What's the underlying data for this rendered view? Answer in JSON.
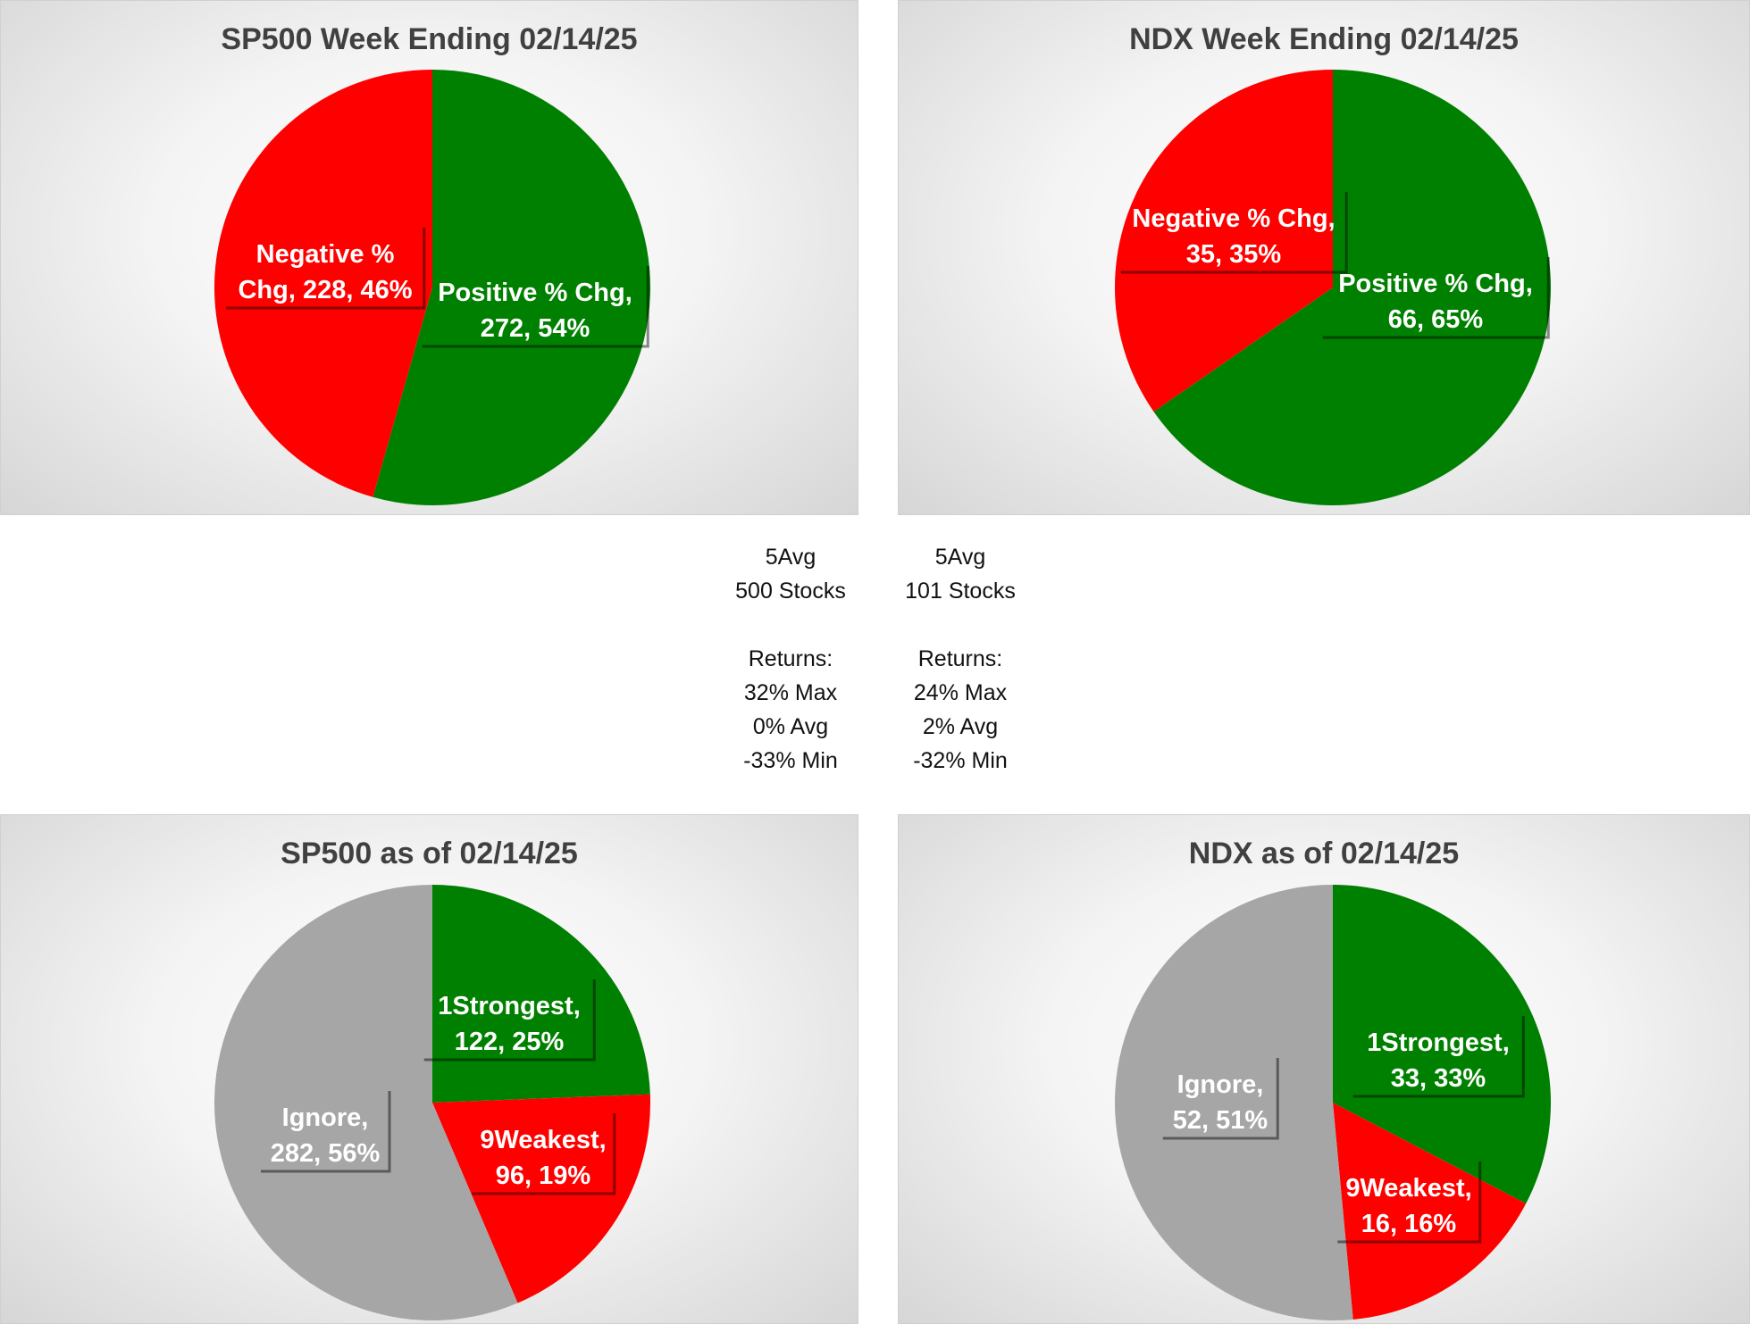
{
  "chart_data": [
    {
      "type": "pie",
      "title": "SP500 Week Ending 02/14/25",
      "slices": [
        {
          "name": "Positive % Chg",
          "value": 272,
          "percent": 54,
          "color": "#008000"
        },
        {
          "name": "Negative % Chg",
          "value": 228,
          "percent": 46,
          "color": "#ff0000"
        }
      ],
      "data_labels": [
        [
          "Positive % Chg,",
          "272, 54%"
        ],
        [
          "Negative %",
          "Chg, 228, 46%"
        ]
      ]
    },
    {
      "type": "pie",
      "title": "NDX Week Ending 02/14/25",
      "slices": [
        {
          "name": "Positive % Chg",
          "value": 66,
          "percent": 65,
          "color": "#008000"
        },
        {
          "name": "Negative % Chg",
          "value": 35,
          "percent": 35,
          "color": "#ff0000"
        }
      ],
      "data_labels": [
        [
          "Positive % Chg,",
          "66, 65%"
        ],
        [
          "Negative % Chg,",
          "35, 35%"
        ]
      ]
    },
    {
      "type": "pie",
      "title": "SP500 as of 02/14/25",
      "slices": [
        {
          "name": "1Strongest",
          "value": 122,
          "percent": 25,
          "color": "#008000"
        },
        {
          "name": "9Weakest",
          "value": 96,
          "percent": 19,
          "color": "#ff0000"
        },
        {
          "name": "Ignore",
          "value": 282,
          "percent": 56,
          "color": "#a6a6a6"
        }
      ],
      "data_labels": [
        [
          "1Strongest,",
          "122, 25%"
        ],
        [
          "9Weakest,",
          "96, 19%"
        ],
        [
          "Ignore,",
          "282, 56%"
        ]
      ]
    },
    {
      "type": "pie",
      "title": "NDX as of 02/14/25",
      "slices": [
        {
          "name": "1Strongest",
          "value": 33,
          "percent": 33,
          "color": "#008000"
        },
        {
          "name": "9Weakest",
          "value": 16,
          "percent": 16,
          "color": "#ff0000"
        },
        {
          "name": "Ignore",
          "value": 52,
          "percent": 51,
          "color": "#a6a6a6"
        }
      ],
      "data_labels": [
        [
          "1Strongest,",
          "33, 33%"
        ],
        [
          "9Weakest,",
          "16, 16%"
        ],
        [
          "Ignore,",
          "52, 51%"
        ]
      ]
    }
  ],
  "stats": {
    "sp500": {
      "lines": [
        "5Avg",
        "500 Stocks",
        "",
        "Returns:",
        "32% Max",
        "0% Avg",
        "-33% Min"
      ]
    },
    "ndx": {
      "lines": [
        "5Avg",
        "101 Stocks",
        "",
        "Returns:",
        "24% Max",
        "2% Avg",
        "-32% Min"
      ]
    }
  }
}
